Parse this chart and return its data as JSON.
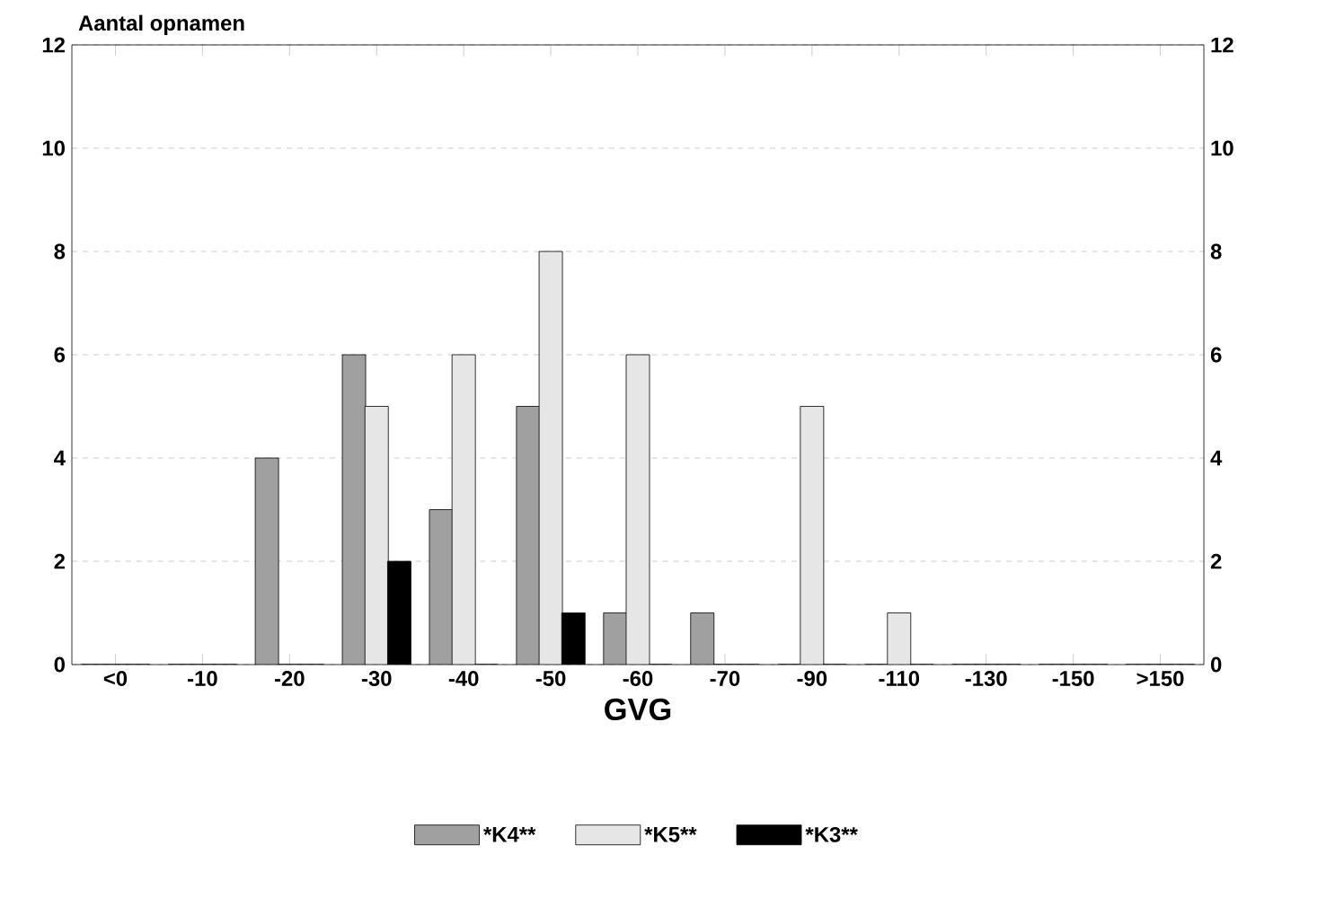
{
  "chart_data": {
    "type": "bar",
    "ylabel": "Aantal opnamen",
    "xlabel": "GVG",
    "categories": [
      "<0",
      "-10",
      "-20",
      "-30",
      "-40",
      "-50",
      "-60",
      "-70",
      "-90",
      "-110",
      "-130",
      "-150",
      ">150"
    ],
    "series": [
      {
        "name": "*K4**",
        "color": "#a0a0a0",
        "values": [
          0,
          0,
          4,
          6,
          3,
          5,
          1,
          1,
          0,
          0,
          0,
          0,
          0
        ]
      },
      {
        "name": "*K5**",
        "color": "#e6e6e6",
        "values": [
          0,
          0,
          0,
          5,
          6,
          8,
          6,
          0,
          5,
          1,
          0,
          0,
          0
        ]
      },
      {
        "name": "*K3**",
        "color": "#000000",
        "values": [
          0,
          0,
          0,
          2,
          0,
          1,
          0,
          0,
          0,
          0,
          0,
          0,
          0
        ]
      }
    ],
    "ylim": [
      0,
      12
    ],
    "yticks": [
      0,
      2,
      4,
      6,
      8,
      10,
      12
    ],
    "y2lim": [
      0,
      12
    ],
    "y2ticks": [
      0,
      2,
      4,
      6,
      8,
      10,
      12
    ],
    "grid": "y",
    "legend": "bottom"
  }
}
